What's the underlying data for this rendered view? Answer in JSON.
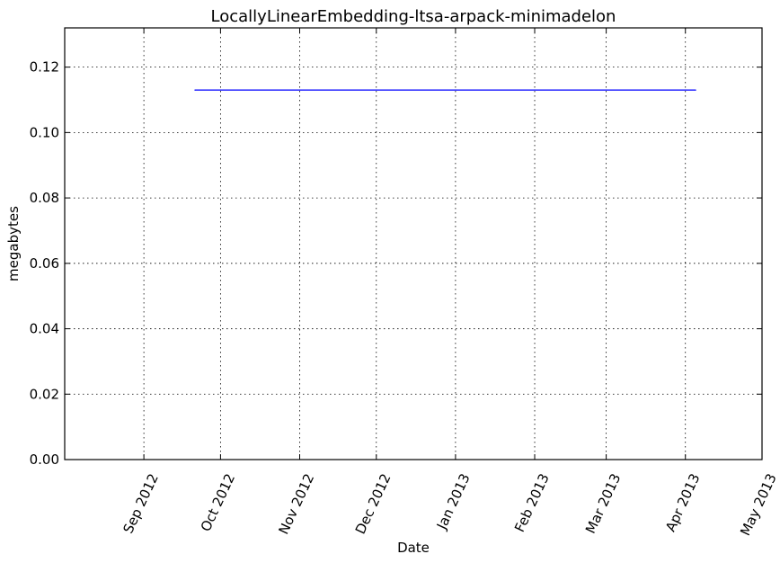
{
  "chart_data": {
    "type": "line",
    "title": "LocallyLinearEmbedding-ltsa-arpack-minimadelon",
    "xlabel": "Date",
    "ylabel": "megabytes",
    "x_range": [
      "2012-08-01",
      "2013-05-01"
    ],
    "ylim": [
      0,
      0.132
    ],
    "grid": true,
    "x_ticks": [
      {
        "date": "2012-09-01",
        "label": "Sep 2012"
      },
      {
        "date": "2012-10-01",
        "label": "Oct 2012"
      },
      {
        "date": "2012-11-01",
        "label": "Nov 2012"
      },
      {
        "date": "2012-12-01",
        "label": "Dec 2012"
      },
      {
        "date": "2013-01-01",
        "label": "Jan 2013"
      },
      {
        "date": "2013-02-01",
        "label": "Feb 2013"
      },
      {
        "date": "2013-03-01",
        "label": "Mar 2013"
      },
      {
        "date": "2013-04-01",
        "label": "Apr 2013"
      },
      {
        "date": "2013-05-01",
        "label": "May 2013"
      }
    ],
    "y_ticks": [
      {
        "value": 0.0,
        "label": "0.00"
      },
      {
        "value": 0.02,
        "label": "0.02"
      },
      {
        "value": 0.04,
        "label": "0.04"
      },
      {
        "value": 0.06,
        "label": "0.06"
      },
      {
        "value": 0.08,
        "label": "0.08"
      },
      {
        "value": 0.1,
        "label": "0.10"
      },
      {
        "value": 0.12,
        "label": "0.12"
      }
    ],
    "series": [
      {
        "color": "#0000ff",
        "points": [
          {
            "x": "2012-09-21",
            "y": 0.113
          },
          {
            "x": "2013-04-05",
            "y": 0.113
          }
        ]
      }
    ]
  }
}
